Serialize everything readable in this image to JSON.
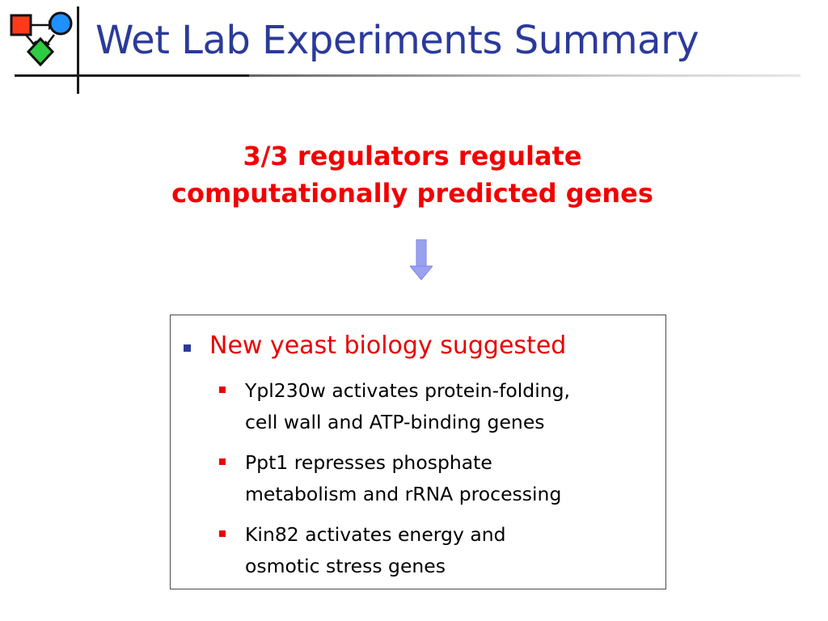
{
  "title": "Wet Lab Experiments Summary",
  "headline": {
    "line1": "3/3 regulators regulate",
    "line2": "computationally predicted genes"
  },
  "arrow_icon": "down-arrow-icon",
  "logo_icon": "network-diagram-logo-icon",
  "colors": {
    "title": "#2b3a9a",
    "headline": "#f20000",
    "arrow": "#9aa2f0",
    "main_bullet": "#2b3a9a",
    "sub_bullet": "#e80000"
  },
  "box": {
    "main_bullet": "New yeast biology suggested",
    "items": [
      {
        "line1": "Ypl230w activates protein-folding,",
        "line2": "cell wall and ATP-binding genes"
      },
      {
        "line1": "Ppt1 represses phosphate",
        "line2": "metabolism and rRNA processing"
      },
      {
        "line1": "Kin82 activates energy and",
        "line2": "osmotic stress genes"
      }
    ]
  }
}
